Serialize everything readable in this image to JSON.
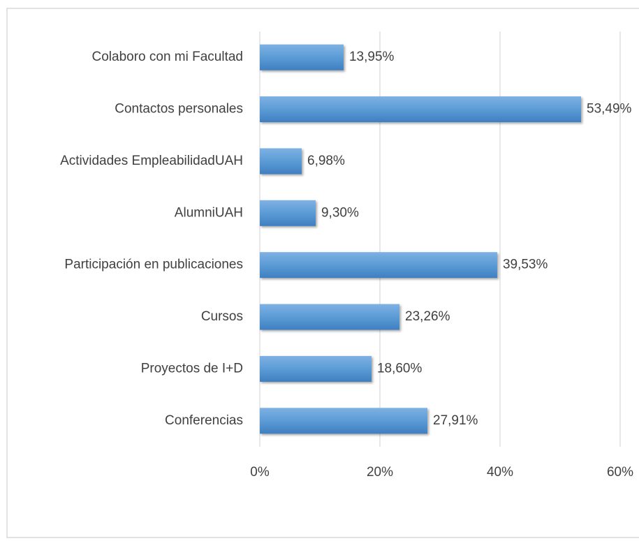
{
  "chart_data": {
    "type": "barh",
    "categories": [
      "Colaboro con mi Facultad",
      "Contactos personales",
      "Actividades EmpleabilidadUAH",
      "AlumniUAH",
      "Participación en publicaciones",
      "Cursos",
      "Proyectos de I+D",
      "Conferencias"
    ],
    "values": [
      13.95,
      53.49,
      6.98,
      9.3,
      39.53,
      23.26,
      18.6,
      27.91
    ],
    "value_labels": [
      "13,95%",
      "53,49%",
      "6,98%",
      "9,30%",
      "39,53%",
      "23,26%",
      "18,60%",
      "27,91%"
    ],
    "color": "#5b9bd5",
    "xlim": [
      0,
      60
    ],
    "xticks": [
      {
        "value": 0,
        "label": "0%"
      },
      {
        "value": 20,
        "label": "20%"
      },
      {
        "value": 40,
        "label": "40%"
      },
      {
        "value": 60,
        "label": "60%"
      }
    ],
    "grid": true
  }
}
